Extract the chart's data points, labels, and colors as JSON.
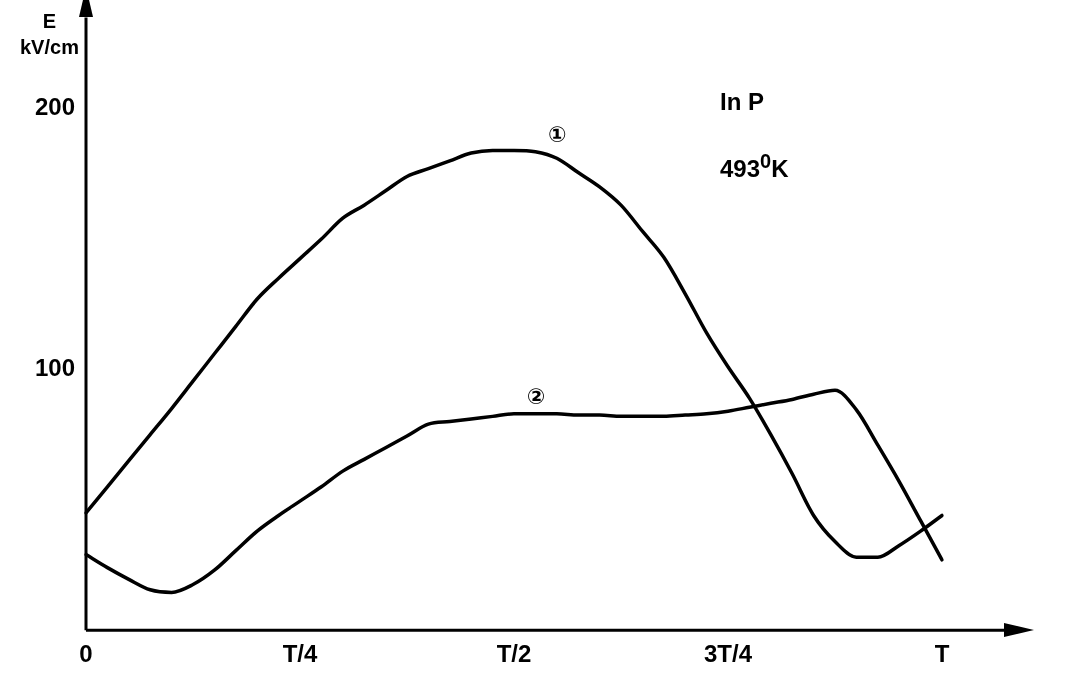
{
  "chart_data": {
    "type": "line",
    "ylabel": "E kV/cm",
    "ylim": [
      0,
      235
    ],
    "categories": [
      "0",
      null,
      null,
      null,
      null,
      null,
      null,
      null,
      null,
      null,
      "T/4",
      null,
      null,
      null,
      null,
      null,
      null,
      null,
      null,
      null,
      "T/2",
      null,
      null,
      null,
      null,
      null,
      null,
      null,
      null,
      null,
      "3T/4",
      null,
      null,
      null,
      null,
      null,
      null,
      null,
      null,
      null,
      "T"
    ],
    "yticks": [
      100,
      200
    ],
    "grid": false,
    "legend": false,
    "marker": "none",
    "line_style": "solid",
    "series": [
      {
        "name": "①",
        "color": "#000000",
        "values": [
          45,
          55,
          65,
          75,
          85,
          95.5,
          106,
          116.5,
          127,
          135,
          142.5,
          150,
          158,
          163,
          168.5,
          174,
          177,
          180,
          183,
          184,
          184,
          183.5,
          181,
          175.5,
          170,
          163,
          153,
          143,
          129,
          114,
          101,
          89,
          75,
          60,
          44,
          34,
          28,
          28,
          32.5,
          38,
          44
        ]
      },
      {
        "name": "②",
        "color": "#000000",
        "values": [
          29,
          24,
          19.5,
          15.5,
          14.5,
          17.5,
          23,
          30.5,
          38,
          44,
          49.5,
          55,
          61,
          65.5,
          70,
          74.5,
          79,
          80,
          81,
          82,
          83,
          83,
          83,
          82.5,
          82.5,
          82,
          82,
          82,
          82.5,
          83,
          84,
          85.5,
          87,
          88.5,
          90.5,
          92,
          84.5,
          71,
          57,
          42,
          27
        ]
      }
    ],
    "annotations": [
      "In P",
      "493$^{0}$K"
    ]
  }
}
